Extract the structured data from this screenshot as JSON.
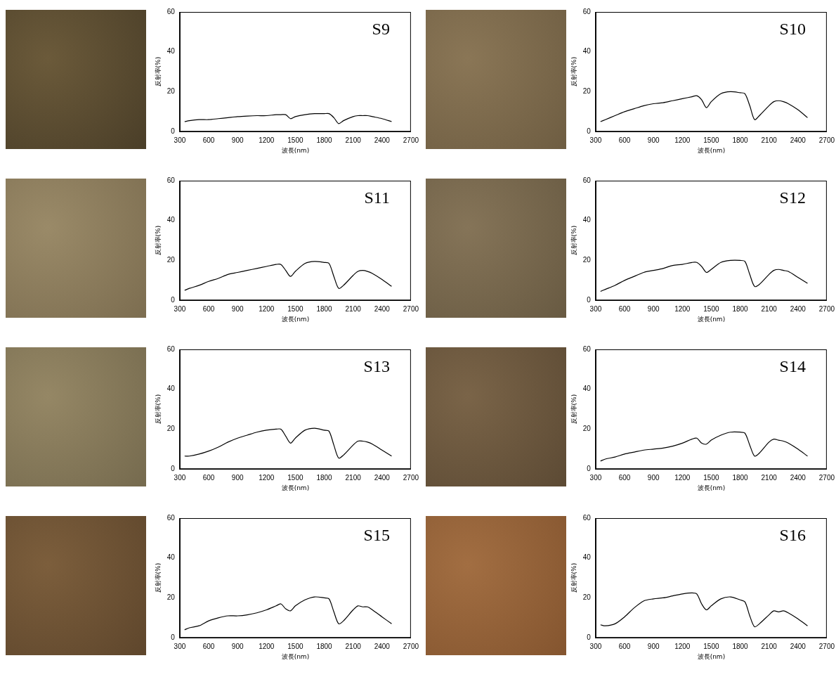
{
  "chart_data": [
    {
      "type": "line",
      "title": "S9",
      "x_label": "波長(nm)",
      "y_label": "反射率(%)",
      "x": [
        350,
        400,
        500,
        600,
        700,
        800,
        900,
        1000,
        1100,
        1200,
        1300,
        1350,
        1400,
        1450,
        1500,
        1600,
        1700,
        1800,
        1850,
        1900,
        1950,
        2000,
        2100,
        2150,
        2200,
        2250,
        2300,
        2400,
        2500
      ],
      "values": [
        5,
        5.5,
        6,
        6,
        6.5,
        7,
        7.5,
        7.8,
        8,
        8,
        8.5,
        8.5,
        8.5,
        6.5,
        7.5,
        8.5,
        9,
        9,
        9,
        7,
        4,
        5.5,
        7.5,
        8,
        8,
        8,
        7.5,
        6.5,
        5
      ],
      "color": "#000000",
      "xlim": [
        300,
        2700
      ],
      "xticks": [
        300,
        600,
        900,
        1200,
        1500,
        1800,
        2100,
        2400,
        2700
      ],
      "ylim": [
        0,
        60
      ],
      "yticks": [
        0,
        20,
        40,
        60
      ],
      "grid": false
    },
    {
      "type": "line",
      "title": "S10",
      "x_label": "波長(nm)",
      "y_label": "反射率(%)",
      "x": [
        350,
        400,
        500,
        600,
        700,
        800,
        900,
        1000,
        1100,
        1200,
        1300,
        1350,
        1400,
        1450,
        1500,
        1600,
        1700,
        1800,
        1850,
        1900,
        1950,
        2000,
        2100,
        2150,
        2200,
        2250,
        2300,
        2400,
        2500
      ],
      "values": [
        5,
        6,
        8,
        10,
        11.5,
        13,
        14,
        14.5,
        15.5,
        16.5,
        17.5,
        18,
        16,
        12,
        15,
        19,
        20,
        19.5,
        19,
        13,
        6,
        8,
        13,
        15,
        15.5,
        15,
        14,
        11,
        7
      ],
      "color": "#000000",
      "xlim": [
        300,
        2700
      ],
      "xticks": [
        300,
        600,
        900,
        1200,
        1500,
        1800,
        2100,
        2400,
        2700
      ],
      "ylim": [
        0,
        60
      ],
      "yticks": [
        0,
        20,
        40,
        60
      ],
      "grid": false
    },
    {
      "type": "line",
      "title": "S11",
      "x_label": "波長(nm)",
      "y_label": "反射率(%)",
      "x": [
        350,
        400,
        500,
        600,
        700,
        800,
        900,
        1000,
        1100,
        1200,
        1300,
        1350,
        1400,
        1450,
        1500,
        1600,
        1700,
        1800,
        1850,
        1900,
        1950,
        2000,
        2100,
        2150,
        2200,
        2250,
        2300,
        2400,
        2500
      ],
      "values": [
        5,
        6,
        7.5,
        9.5,
        11,
        13,
        14,
        15,
        16,
        17,
        18,
        18,
        15,
        12,
        14.5,
        18.5,
        19.5,
        19,
        18.5,
        12,
        6,
        7.5,
        12.5,
        14.5,
        15,
        14.5,
        13.5,
        10.5,
        7
      ],
      "color": "#000000",
      "xlim": [
        300,
        2700
      ],
      "xticks": [
        300,
        600,
        900,
        1200,
        1500,
        1800,
        2100,
        2400,
        2700
      ],
      "ylim": [
        0,
        60
      ],
      "yticks": [
        0,
        20,
        40,
        60
      ],
      "grid": false
    },
    {
      "type": "line",
      "title": "S12",
      "x_label": "波長(nm)",
      "y_label": "反射率(%)",
      "x": [
        350,
        400,
        500,
        600,
        700,
        800,
        900,
        1000,
        1100,
        1200,
        1300,
        1350,
        1400,
        1450,
        1500,
        1600,
        1700,
        1800,
        1850,
        1900,
        1950,
        2000,
        2100,
        2150,
        2200,
        2250,
        2300,
        2400,
        2500
      ],
      "values": [
        4.5,
        5.5,
        7.5,
        10,
        12,
        14,
        15,
        16,
        17.5,
        18,
        19,
        19,
        17,
        14,
        15.5,
        19,
        20,
        20,
        19.5,
        13,
        7,
        8,
        13,
        15,
        15.5,
        15,
        14.5,
        11.5,
        8.5
      ],
      "color": "#000000",
      "xlim": [
        300,
        2700
      ],
      "xticks": [
        300,
        600,
        900,
        1200,
        1500,
        1800,
        2100,
        2400,
        2700
      ],
      "ylim": [
        0,
        60
      ],
      "yticks": [
        0,
        20,
        40,
        60
      ],
      "grid": false
    },
    {
      "type": "line",
      "title": "S13",
      "x_label": "波長(nm)",
      "y_label": "反射率(%)",
      "x": [
        350,
        400,
        500,
        600,
        700,
        800,
        900,
        1000,
        1100,
        1200,
        1300,
        1350,
        1400,
        1450,
        1500,
        1600,
        1700,
        1800,
        1850,
        1900,
        1950,
        2000,
        2100,
        2150,
        2200,
        2250,
        2300,
        2400,
        2500
      ],
      "values": [
        6.5,
        6.5,
        7.5,
        9,
        11,
        13.5,
        15.5,
        17,
        18.5,
        19.5,
        20,
        20,
        16.5,
        13,
        15.5,
        19.5,
        20.5,
        19.5,
        19,
        12,
        5.5,
        7,
        12,
        14,
        14,
        13.5,
        12.5,
        9.5,
        6.5
      ],
      "color": "#000000",
      "xlim": [
        300,
        2700
      ],
      "xticks": [
        300,
        600,
        900,
        1200,
        1500,
        1800,
        2100,
        2400,
        2700
      ],
      "ylim": [
        0,
        60
      ],
      "yticks": [
        0,
        20,
        40,
        60
      ],
      "grid": false
    },
    {
      "type": "line",
      "title": "S14",
      "x_label": "波長(nm)",
      "y_label": "反射率(%)",
      "x": [
        350,
        400,
        500,
        600,
        700,
        800,
        900,
        1000,
        1100,
        1200,
        1300,
        1350,
        1400,
        1450,
        1500,
        1600,
        1700,
        1800,
        1850,
        1900,
        1950,
        2000,
        2100,
        2150,
        2200,
        2250,
        2300,
        2400,
        2500
      ],
      "values": [
        4,
        5,
        6,
        7.5,
        8.5,
        9.5,
        10,
        10.5,
        11.5,
        13,
        15,
        15.5,
        13,
        12.5,
        14.5,
        17,
        18.5,
        18.5,
        18,
        12,
        6.5,
        8,
        13.5,
        15,
        14.5,
        14,
        13,
        10,
        6.5
      ],
      "color": "#000000",
      "xlim": [
        300,
        2700
      ],
      "xticks": [
        300,
        600,
        900,
        1200,
        1500,
        1800,
        2100,
        2400,
        2700
      ],
      "ylim": [
        0,
        60
      ],
      "yticks": [
        0,
        20,
        40,
        60
      ],
      "grid": false
    },
    {
      "type": "line",
      "title": "S15",
      "x_label": "波長(nm)",
      "y_label": "反射率(%)",
      "x": [
        350,
        400,
        500,
        600,
        700,
        800,
        900,
        1000,
        1100,
        1200,
        1300,
        1350,
        1400,
        1450,
        1500,
        1600,
        1700,
        1800,
        1850,
        1900,
        1950,
        2000,
        2100,
        2150,
        2200,
        2250,
        2300,
        2400,
        2500
      ],
      "values": [
        4,
        5,
        6,
        8.5,
        10,
        11,
        11,
        11.5,
        12.5,
        14,
        16,
        17,
        14.5,
        13.5,
        16,
        19,
        20.5,
        20,
        19.5,
        13,
        7,
        8.5,
        14,
        16,
        15.5,
        15.5,
        14,
        10.5,
        7
      ],
      "color": "#000000",
      "xlim": [
        300,
        2700
      ],
      "xticks": [
        300,
        600,
        900,
        1200,
        1500,
        1800,
        2100,
        2400,
        2700
      ],
      "ylim": [
        0,
        60
      ],
      "yticks": [
        0,
        20,
        40,
        60
      ],
      "grid": false
    },
    {
      "type": "line",
      "title": "S16",
      "x_label": "波長(nm)",
      "y_label": "反射率(%)",
      "x": [
        350,
        400,
        500,
        600,
        700,
        800,
        900,
        1000,
        1100,
        1200,
        1300,
        1350,
        1400,
        1450,
        1500,
        1600,
        1700,
        1800,
        1850,
        1900,
        1950,
        2000,
        2100,
        2150,
        2200,
        2250,
        2300,
        2400,
        2500
      ],
      "values": [
        6.5,
        6,
        7,
        10.5,
        15,
        18.5,
        19.5,
        20,
        21,
        22,
        22.5,
        22,
        17,
        14,
        16,
        19.5,
        20.5,
        19,
        18,
        11,
        5.5,
        7,
        11.5,
        13.5,
        13,
        13.5,
        12.5,
        9.5,
        6
      ],
      "color": "#000000",
      "xlim": [
        300,
        2700
      ],
      "xticks": [
        300,
        600,
        900,
        1200,
        1500,
        1800,
        2100,
        2400,
        2700
      ],
      "ylim": [
        0,
        60
      ],
      "yticks": [
        0,
        20,
        40,
        60
      ],
      "grid": false
    }
  ]
}
